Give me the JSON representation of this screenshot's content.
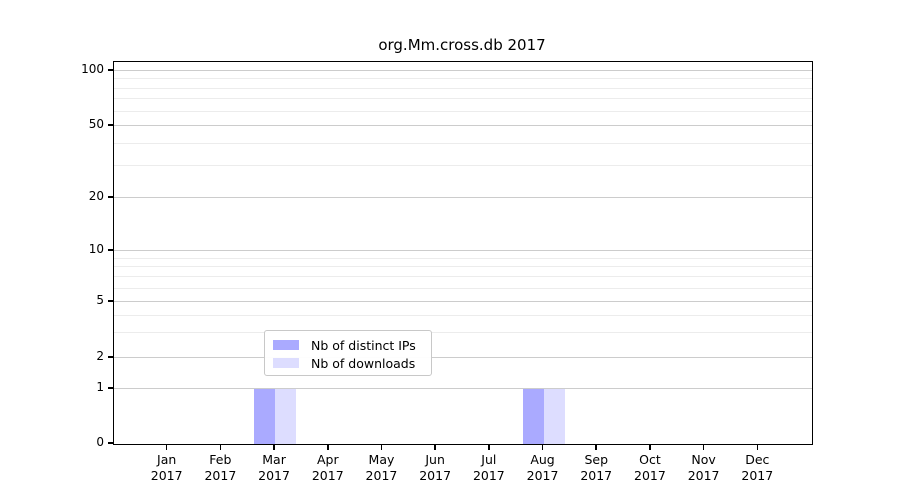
{
  "title": "org.Mm.cross.db 2017",
  "chart_data": {
    "type": "bar",
    "title": "org.Mm.cross.db 2017",
    "x_months": [
      "Jan",
      "Feb",
      "Mar",
      "Apr",
      "May",
      "Jun",
      "Jul",
      "Aug",
      "Sep",
      "Oct",
      "Nov",
      "Dec"
    ],
    "x_year": "2017",
    "series": [
      {
        "name": "Nb of distinct IPs",
        "color": "#aaaaff",
        "values": [
          0,
          0,
          1,
          0,
          0,
          0,
          0,
          1,
          0,
          0,
          0,
          0
        ]
      },
      {
        "name": "Nb of downloads",
        "color": "#ddddff",
        "values": [
          0,
          0,
          1,
          0,
          0,
          0,
          0,
          1,
          0,
          0,
          0,
          0
        ]
      }
    ],
    "y_scale": "log-like with linear segment from 0 to 1",
    "y_tick_labels": [
      "100",
      "50",
      "20",
      "10",
      "5",
      "2",
      "1",
      "0"
    ],
    "y_ticks": [
      100,
      50,
      20,
      10,
      5,
      2,
      1,
      0
    ],
    "y_minor_ticks": [
      3,
      4,
      6,
      7,
      8,
      9,
      30,
      40,
      60,
      70,
      80,
      90
    ],
    "ylim": [
      0,
      130
    ],
    "grid": "horizontal",
    "legend_position": "bottom-center",
    "xlabel": "",
    "ylabel": ""
  },
  "legend": {
    "items": [
      {
        "label": "Nb of distinct IPs",
        "color": "#aaaaff"
      },
      {
        "label": "Nb of downloads",
        "color": "#ddddff"
      }
    ]
  },
  "colors": {
    "distinct_ips": "#aaaaff",
    "downloads": "#ddddff",
    "major_grid": "#cccccc",
    "minor_grid": "#ececec",
    "axis": "#000000"
  }
}
